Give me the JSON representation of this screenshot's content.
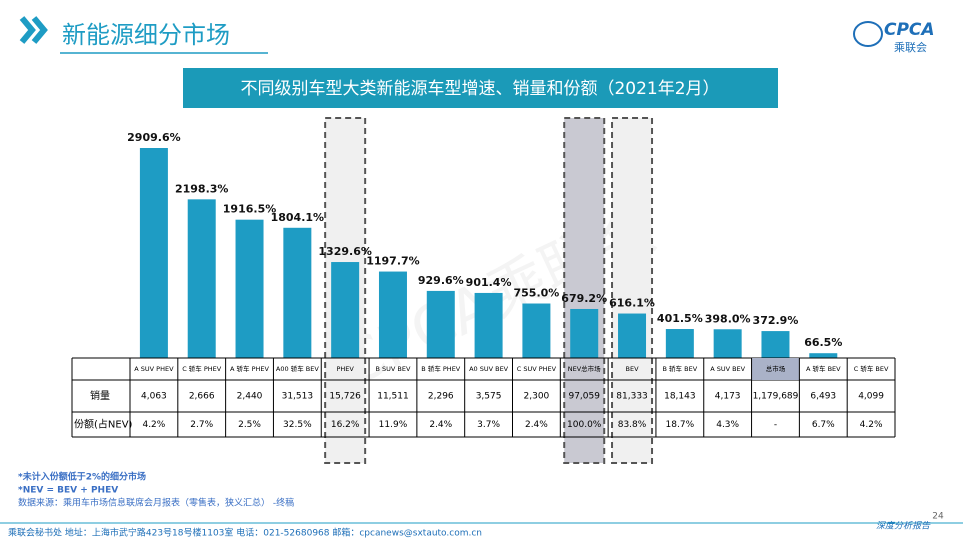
{
  "header": {
    "title": "新能源细分市场"
  },
  "logo": {
    "text": "CPCA",
    "sub": "乘联会"
  },
  "watermark": "CPCA乘联会",
  "chart_data": {
    "type": "bar",
    "title": "不同级别车型大类新能源车型增速、销量和份额（2021年2月）",
    "categories": [
      "A SUV PHEV",
      "C 轿车 PHEV",
      "A 轿车 PHEV",
      "A00 轿车 BEV",
      "PHEV",
      "B SUV BEV",
      "B 轿车 PHEV",
      "A0 SUV BEV",
      "C SUV PHEV",
      "NEV总市场",
      "BEV",
      "B 轿车 BEV",
      "A SUV BEV",
      "总市场",
      "A 轿车 BEV",
      "C 轿车 BEV"
    ],
    "values": [
      2909.6,
      2198.3,
      1916.5,
      1804.1,
      1329.6,
      1197.7,
      929.6,
      901.4,
      755.0,
      679.2,
      616.1,
      401.5,
      398.0,
      372.9,
      66.5,
      null
    ],
    "value_labels": [
      "2909.6%",
      "2198.3%",
      "1916.5%",
      "1804.1%",
      "1329.6%",
      "1197.7%",
      "929.6%",
      "901.4%",
      "755.0%",
      "679.2%",
      "616.1%",
      "401.5%",
      "398.0%",
      "372.9%",
      "66.5%",
      null
    ],
    "color": "#1e9cc4"
  },
  "table": {
    "row_labels": [
      "销量",
      "份额(占NEV)"
    ],
    "rows": [
      [
        "4,063",
        "2,666",
        "2,440",
        "31,513",
        "15,726",
        "11,511",
        "2,296",
        "3,575",
        "2,300",
        "97,059",
        "81,333",
        "18,143",
        "4,173",
        "1,179,689",
        "6,493",
        "4,099"
      ],
      [
        "4.2%",
        "2.7%",
        "2.5%",
        "32.5%",
        "16.2%",
        "11.9%",
        "2.4%",
        "3.7%",
        "2.4%",
        "100.0%",
        "83.8%",
        "18.7%",
        "4.3%",
        "-",
        "6.7%",
        "4.2%"
      ]
    ]
  },
  "notes": [
    "*未计入份额低于2%的细分市场",
    "*NEV = BEV + PHEV",
    "数据来源：乘用车市场信息联席会月报表（零售表，狭义汇总） -终稿"
  ],
  "footer": {
    "address": "乘联会秘书处   地址：上海市武宁路423号18号楼1103室  电话：021-52680968   邮箱：cpcanews@sxtauto.com.cn",
    "page": "24",
    "report": "深度分析报告"
  }
}
